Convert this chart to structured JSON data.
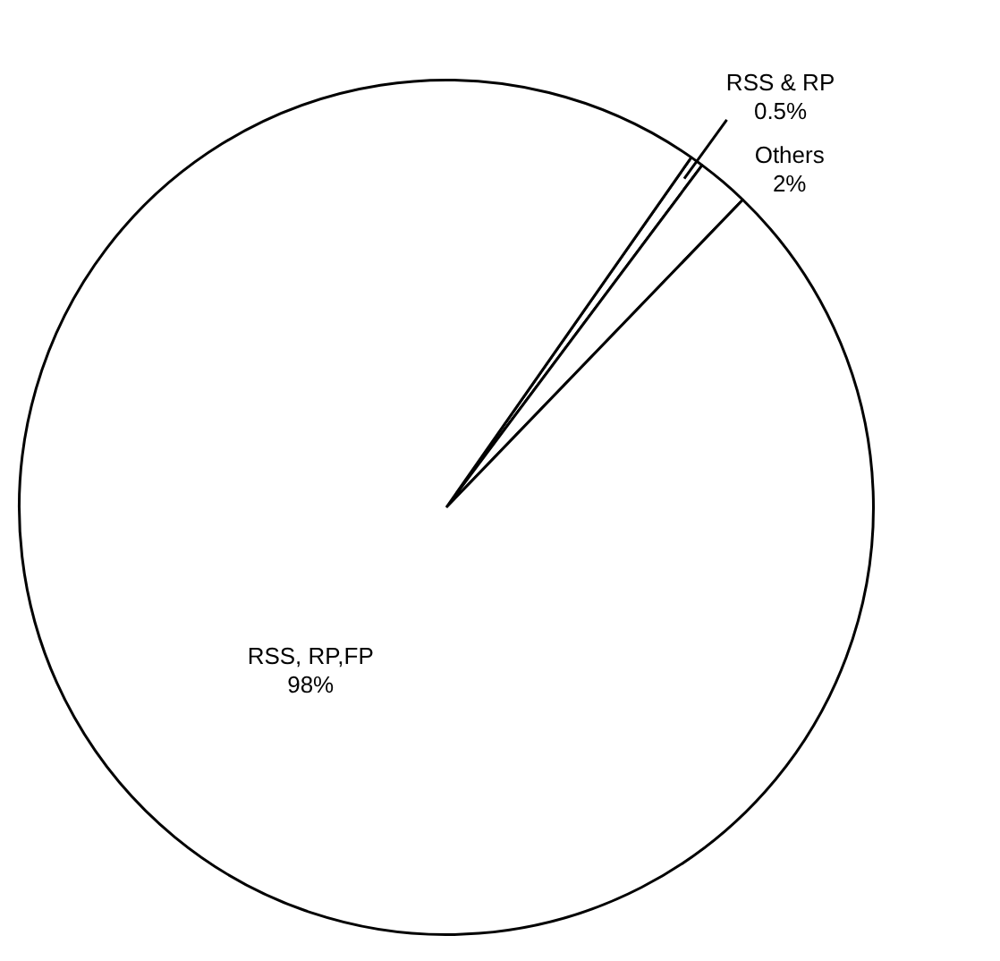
{
  "chart_data": {
    "type": "pie",
    "categories": [
      "RSS & RP",
      "Others",
      "RSS, RP,FP"
    ],
    "values": [
      0.5,
      2,
      98
    ],
    "colors": [
      "#ffffff",
      "#ffffff",
      "#ffffff"
    ],
    "value_labels": [
      "0.5%",
      "2%",
      "98%"
    ],
    "legend": false
  }
}
